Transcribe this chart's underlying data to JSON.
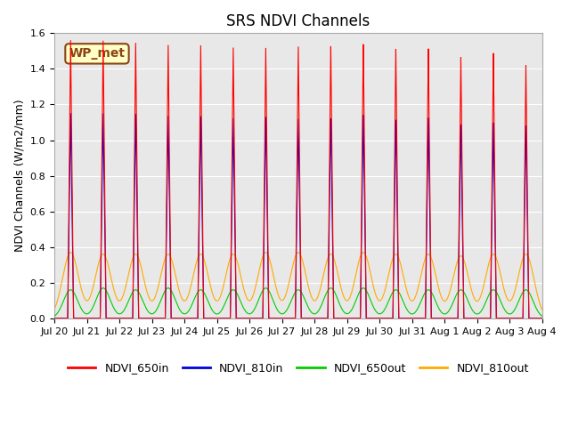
{
  "title": "SRS NDVI Channels",
  "ylabel": "NDVI Channels (W/m2/mm)",
  "ylim": [
    0.0,
    1.6
  ],
  "yticks": [
    0.0,
    0.2,
    0.4,
    0.6,
    0.8,
    1.0,
    1.2,
    1.4,
    1.6
  ],
  "bg_color": "#e8e8e8",
  "annotation_text": "WP_met",
  "annotation_bg": "#ffffc8",
  "annotation_border": "#8b4513",
  "colors": {
    "NDVI_650in": "#ff0000",
    "NDVI_810in": "#0000dd",
    "NDVI_650out": "#00cc00",
    "NDVI_810out": "#ffaa00"
  },
  "legend_labels": [
    "NDVI_650in",
    "NDVI_810in",
    "NDVI_650out",
    "NDVI_810out"
  ],
  "n_cycles": 15,
  "peak_650in": [
    1.56,
    1.56,
    1.55,
    1.54,
    1.54,
    1.53,
    1.53,
    1.54,
    1.54,
    1.55,
    1.52,
    1.52,
    1.47,
    1.49,
    1.42
  ],
  "peak_810in": [
    1.15,
    1.15,
    1.15,
    1.14,
    1.14,
    1.13,
    1.14,
    1.13,
    1.13,
    1.15,
    1.12,
    1.13,
    1.09,
    1.1,
    1.08
  ],
  "peak_650out": [
    0.16,
    0.17,
    0.16,
    0.17,
    0.16,
    0.16,
    0.17,
    0.16,
    0.17,
    0.17,
    0.16,
    0.16,
    0.16,
    0.16,
    0.16
  ],
  "peak_810out": [
    0.37,
    0.36,
    0.36,
    0.36,
    0.36,
    0.36,
    0.37,
    0.37,
    0.36,
    0.37,
    0.36,
    0.36,
    0.35,
    0.36,
    0.36
  ],
  "tick_labels": [
    "Jul 20",
    "Jul 21",
    "Jul 22",
    "Jul 23",
    "Jul 24",
    "Jul 25",
    "Jul 26",
    "Jul 27",
    "Jul 28",
    "Jul 29",
    "Jul 30",
    "Jul 31",
    "Aug 1",
    "Aug 2",
    "Aug 3",
    "Aug 4"
  ]
}
